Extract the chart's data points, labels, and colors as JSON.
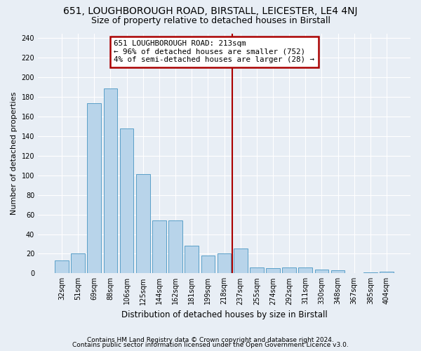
{
  "title1": "651, LOUGHBOROUGH ROAD, BIRSTALL, LEICESTER, LE4 4NJ",
  "title2": "Size of property relative to detached houses in Birstall",
  "xlabel": "Distribution of detached houses by size in Birstall",
  "ylabel": "Number of detached properties",
  "footer1": "Contains HM Land Registry data © Crown copyright and database right 2024.",
  "footer2": "Contains public sector information licensed under the Open Government Licence v3.0.",
  "bar_values": [
    13,
    20,
    174,
    189,
    148,
    101,
    54,
    54,
    28,
    18,
    20,
    25,
    6,
    5,
    6,
    6,
    4,
    3,
    0,
    1,
    2
  ],
  "bar_labels": [
    "32sqm",
    "51sqm",
    "69sqm",
    "88sqm",
    "106sqm",
    "125sqm",
    "144sqm",
    "162sqm",
    "181sqm",
    "199sqm",
    "218sqm",
    "237sqm",
    "255sqm",
    "274sqm",
    "292sqm",
    "311sqm",
    "330sqm",
    "348sqm",
    "367sqm",
    "385sqm",
    "404sqm"
  ],
  "bar_color": "#b8d4ea",
  "bar_edge_color": "#5a9fc8",
  "annotation_text": "651 LOUGHBOROUGH ROAD: 213sqm\n← 96% of detached houses are smaller (752)\n4% of semi-detached houses are larger (28) →",
  "annotation_box_color": "#ffffff",
  "annotation_box_edge": "#aa0000",
  "vline_color": "#aa0000",
  "vline_x_index": 10.5,
  "ytick_values": [
    0,
    20,
    40,
    60,
    80,
    100,
    120,
    140,
    160,
    180,
    200,
    220,
    240
  ],
  "ylim": [
    0,
    245
  ],
  "bg_color": "#e8eef5",
  "grid_color": "#ffffff",
  "title1_fontsize": 10,
  "title2_fontsize": 9,
  "footer_fontsize": 6.5,
  "ylabel_fontsize": 8,
  "xlabel_fontsize": 8.5
}
